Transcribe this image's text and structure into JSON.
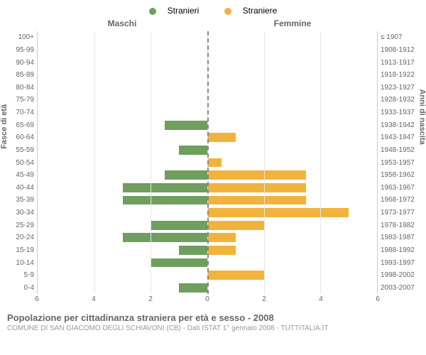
{
  "legend": {
    "male": {
      "label": "Stranieri",
      "color": "#6f9e5f"
    },
    "female": {
      "label": "Straniere",
      "color": "#f2b33d"
    }
  },
  "headers": {
    "left": "Maschi",
    "right": "Femmine"
  },
  "axis_titles": {
    "left": "Fasce di età",
    "right": "Anni di nascita"
  },
  "xaxis": {
    "max": 6,
    "ticks": [
      6,
      4,
      2,
      0,
      2,
      4,
      6
    ],
    "tick_positions_pct": [
      0,
      16.67,
      33.33,
      50,
      66.67,
      83.33,
      100
    ]
  },
  "age_labels": [
    "100+",
    "95-99",
    "90-94",
    "85-89",
    "80-84",
    "75-79",
    "70-74",
    "65-69",
    "60-64",
    "55-59",
    "50-54",
    "45-49",
    "40-44",
    "35-39",
    "30-34",
    "25-29",
    "20-24",
    "15-19",
    "10-14",
    "5-9",
    "0-4"
  ],
  "year_labels": [
    "≤ 1907",
    "1908-1912",
    "1913-1917",
    "1918-1922",
    "1923-1927",
    "1928-1932",
    "1933-1937",
    "1938-1942",
    "1943-1947",
    "1948-1952",
    "1953-1957",
    "1958-1962",
    "1963-1967",
    "1968-1972",
    "1973-1977",
    "1978-1982",
    "1983-1987",
    "1988-1992",
    "1993-1997",
    "1998-2002",
    "2003-2007"
  ],
  "male_values": [
    0,
    0,
    0,
    0,
    0,
    0,
    0,
    1.5,
    0,
    1,
    0,
    1.5,
    3,
    3,
    0,
    2,
    3,
    1,
    2,
    0,
    1
  ],
  "female_values": [
    0,
    0,
    0,
    0,
    0,
    0,
    0,
    0,
    1,
    0,
    0.5,
    3.5,
    3.5,
    3.5,
    5,
    2,
    1,
    1,
    0,
    2,
    0
  ],
  "colors": {
    "bar_male": "#6f9e5f",
    "bar_female": "#f2b33d",
    "grid": "#e5e5e5",
    "center_dash": "#888888",
    "background": "#ffffff"
  },
  "footer": {
    "title": "Popolazione per cittadinanza straniera per età e sesso - 2008",
    "subtitle": "COMUNE DI SAN GIACOMO DEGLI SCHIAVONI (CB) - Dati ISTAT 1° gennaio 2008 - TUTTITALIA.IT"
  }
}
